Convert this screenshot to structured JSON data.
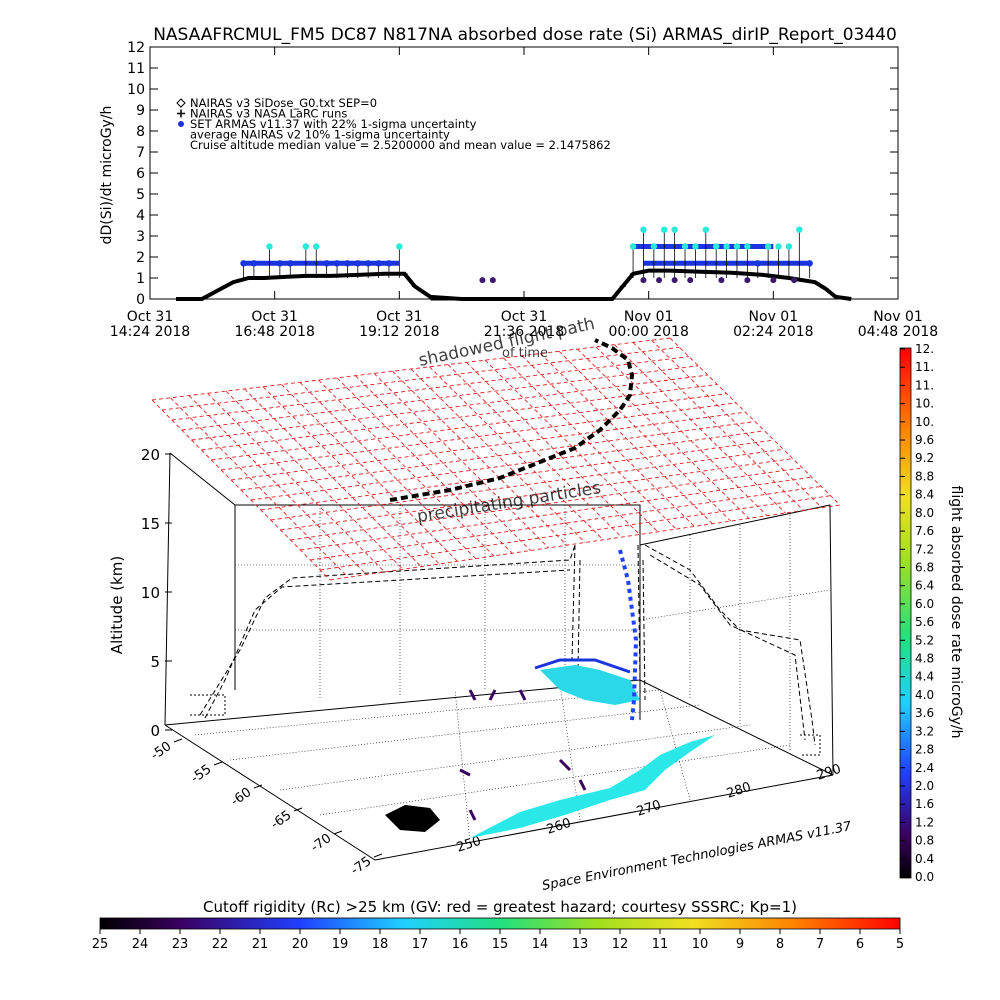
{
  "title": "NASAAFRCMUL_FM5 DC87 N817NA absorbed dose rate (Si) ARMAS_dirIP_Report_03440",
  "colors": {
    "nairas_v2_marker": "#3b1a6e",
    "armas_blue": "#1a35e0",
    "armas_cyan": "#2be8d8",
    "nairas_v3": "#000000",
    "grid_red": "#e02020"
  },
  "chart_data": [
    {
      "type": "line",
      "ylabel": "dD(Si)/dt microGy/h",
      "ylim": [
        0,
        12
      ],
      "y_ticks": [
        "0",
        "1",
        "2",
        "3",
        "4",
        "5",
        "6",
        "7",
        "8",
        "9",
        "10",
        "11",
        "12"
      ],
      "x_tick_labels": [
        {
          "line1": "Oct 31",
          "line2": "14:24 2018"
        },
        {
          "line1": "Oct 31",
          "line2": "16:48 2018"
        },
        {
          "line1": "Oct 31",
          "line2": "19:12 2018"
        },
        {
          "line1": "Oct 31",
          "line2": "21:36 2018"
        },
        {
          "line1": "Nov 01",
          "line2": "00:00 2018"
        },
        {
          "line1": "Nov 01",
          "line2": "02:24 2018"
        },
        {
          "line1": "Nov 01",
          "line2": "04:48 2018"
        }
      ],
      "xlim_hours": [
        0,
        14.4
      ],
      "legend": [
        {
          "symbol": "diamond",
          "text": "NAIRAS v3 SiDose_G0.txt SEP=0"
        },
        {
          "symbol": "plus",
          "text": "NAIRAS v3 NASA LaRC runs"
        },
        {
          "symbol": "dot",
          "text": "SET ARMAS v11.37 with 22% 1-sigma uncertainty"
        },
        {
          "symbol": "none",
          "text": "average NAIRAS v2 10% 1-sigma uncertainty"
        },
        {
          "symbol": "none",
          "text": "Cruise altitude median value = 2.5200000 and mean value = 2.1475862"
        }
      ],
      "series": [
        {
          "name": "NAIRAS v3 NASA LaRC runs",
          "x": [
            0.5,
            1.0,
            1.3,
            1.6,
            1.9,
            2.2,
            2.6,
            3.0,
            3.5,
            4.0,
            4.5,
            4.9,
            5.1,
            5.4,
            6.0,
            7.0,
            8.0,
            8.9,
            9.1,
            9.3,
            9.6,
            10.0,
            10.6,
            11.2,
            11.8,
            12.3,
            12.8,
            13.0,
            13.2,
            13.5
          ],
          "y": [
            0,
            0,
            0.4,
            0.8,
            1.0,
            1.0,
            1.05,
            1.1,
            1.1,
            1.15,
            1.2,
            1.2,
            0.6,
            0.1,
            0,
            0,
            0,
            0,
            0.6,
            1.2,
            1.35,
            1.35,
            1.3,
            1.25,
            1.15,
            1.0,
            0.8,
            0.5,
            0.1,
            0
          ]
        },
        {
          "name": "SET ARMAS v11.37 with 22% 1-sigma uncertainty",
          "x": [
            1.8,
            2.0,
            2.3,
            2.5,
            2.7,
            3.0,
            3.2,
            3.4,
            3.6,
            3.8,
            4.0,
            4.2,
            4.4,
            4.6,
            4.8,
            9.3,
            9.5,
            9.7,
            9.9,
            10.1,
            10.3,
            10.5,
            10.7,
            10.9,
            11.1,
            11.3,
            11.5,
            11.7,
            11.9,
            12.1,
            12.3,
            12.5,
            12.7
          ],
          "y": [
            1.7,
            1.7,
            2.5,
            1.7,
            1.7,
            2.5,
            2.5,
            1.7,
            1.7,
            1.7,
            1.7,
            1.7,
            1.7,
            1.7,
            2.5,
            2.5,
            3.3,
            2.5,
            3.3,
            3.3,
            2.5,
            2.5,
            3.3,
            2.5,
            2.5,
            2.5,
            2.5,
            1.7,
            2.5,
            2.5,
            2.5,
            3.3,
            1.7
          ]
        },
        {
          "name": "NAIRAS v3 SiDose_G0.txt SEP=0",
          "x": [
            6.4,
            6.6,
            9.5,
            9.8,
            10.1,
            10.4,
            11.0,
            11.5,
            12.0,
            12.4
          ],
          "y": [
            0.9,
            0.9,
            0.9,
            0.9,
            0.9,
            0.9,
            0.9,
            0.9,
            0.9,
            0.9
          ]
        }
      ]
    },
    {
      "type": "scatter",
      "ylabel": "Altitude (km)",
      "z_ticks": [
        "0",
        "5",
        "10",
        "15",
        "20"
      ],
      "lat_ticks": [
        "-50",
        "-55",
        "-60",
        "-65",
        "-70",
        "-75"
      ],
      "lon_ticks": [
        "250",
        "260",
        "270",
        "280",
        "290"
      ],
      "annotations": [
        "shadowed flight path",
        "of time",
        "precipitating particles"
      ],
      "credit": "Space Environment Technologies ARMAS v11.37"
    }
  ],
  "right_colorbar": {
    "label": "flight absorbed dose rate microGy/h",
    "ticks": [
      "0.0",
      "0.4",
      "0.8",
      "1.2",
      "1.6",
      "2.0",
      "2.4",
      "2.8",
      "3.2",
      "3.6",
      "4.0",
      "4.4",
      "4.8",
      "5.2",
      "5.6",
      "6.0",
      "6.4",
      "6.8",
      "7.2",
      "7.6",
      "8.0",
      "8.4",
      "8.8",
      "9.2",
      "9.6",
      "10.",
      "10.",
      "11.",
      "11.",
      "12."
    ],
    "range": [
      0,
      12
    ]
  },
  "bottom_colorbar": {
    "label": "Cutoff rigidity (Rc) >25 km (GV: red = greatest hazard; courtesy SSSRC; Kp=1)",
    "ticks": [
      "25",
      "24",
      "23",
      "22",
      "21",
      "20",
      "19",
      "18",
      "17",
      "16",
      "15",
      "14",
      "13",
      "12",
      "11",
      "10",
      "9",
      "8",
      "7",
      "6",
      "5"
    ]
  }
}
